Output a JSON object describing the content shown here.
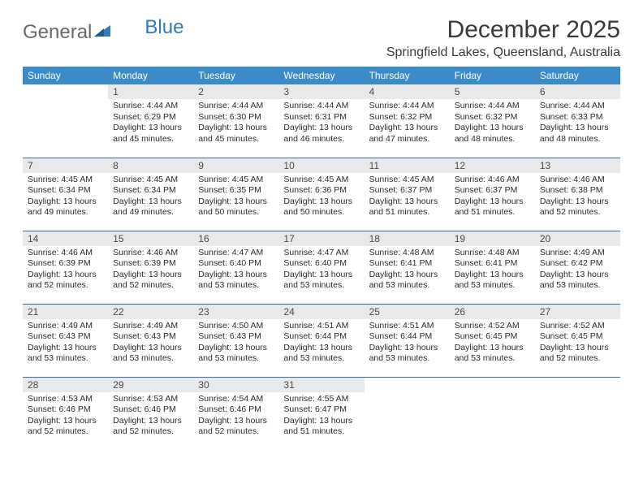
{
  "logo": {
    "text_general": "General",
    "text_blue": "Blue"
  },
  "header": {
    "month_title": "December 2025",
    "location": "Springfield Lakes, Queensland, Australia"
  },
  "colors": {
    "header_bg": "#3b8bc9",
    "header_text": "#ffffff",
    "daynum_bg": "#e8e9ea",
    "daynum_text": "#4a4a4a",
    "body_text": "#2b2b2b",
    "row_divider": "#2f6fa8",
    "title_text": "#3a3a3a",
    "logo_gray": "#6a6a6a",
    "logo_blue": "#2f7bbf"
  },
  "calendar": {
    "day_headers": [
      "Sunday",
      "Monday",
      "Tuesday",
      "Wednesday",
      "Thursday",
      "Friday",
      "Saturday"
    ],
    "first_weekday_index": 1,
    "days": [
      {
        "n": 1,
        "sunrise": "4:44 AM",
        "sunset": "6:29 PM",
        "daylight": "13 hours and 45 minutes."
      },
      {
        "n": 2,
        "sunrise": "4:44 AM",
        "sunset": "6:30 PM",
        "daylight": "13 hours and 45 minutes."
      },
      {
        "n": 3,
        "sunrise": "4:44 AM",
        "sunset": "6:31 PM",
        "daylight": "13 hours and 46 minutes."
      },
      {
        "n": 4,
        "sunrise": "4:44 AM",
        "sunset": "6:32 PM",
        "daylight": "13 hours and 47 minutes."
      },
      {
        "n": 5,
        "sunrise": "4:44 AM",
        "sunset": "6:32 PM",
        "daylight": "13 hours and 48 minutes."
      },
      {
        "n": 6,
        "sunrise": "4:44 AM",
        "sunset": "6:33 PM",
        "daylight": "13 hours and 48 minutes."
      },
      {
        "n": 7,
        "sunrise": "4:45 AM",
        "sunset": "6:34 PM",
        "daylight": "13 hours and 49 minutes."
      },
      {
        "n": 8,
        "sunrise": "4:45 AM",
        "sunset": "6:34 PM",
        "daylight": "13 hours and 49 minutes."
      },
      {
        "n": 9,
        "sunrise": "4:45 AM",
        "sunset": "6:35 PM",
        "daylight": "13 hours and 50 minutes."
      },
      {
        "n": 10,
        "sunrise": "4:45 AM",
        "sunset": "6:36 PM",
        "daylight": "13 hours and 50 minutes."
      },
      {
        "n": 11,
        "sunrise": "4:45 AM",
        "sunset": "6:37 PM",
        "daylight": "13 hours and 51 minutes."
      },
      {
        "n": 12,
        "sunrise": "4:46 AM",
        "sunset": "6:37 PM",
        "daylight": "13 hours and 51 minutes."
      },
      {
        "n": 13,
        "sunrise": "4:46 AM",
        "sunset": "6:38 PM",
        "daylight": "13 hours and 52 minutes."
      },
      {
        "n": 14,
        "sunrise": "4:46 AM",
        "sunset": "6:39 PM",
        "daylight": "13 hours and 52 minutes."
      },
      {
        "n": 15,
        "sunrise": "4:46 AM",
        "sunset": "6:39 PM",
        "daylight": "13 hours and 52 minutes."
      },
      {
        "n": 16,
        "sunrise": "4:47 AM",
        "sunset": "6:40 PM",
        "daylight": "13 hours and 53 minutes."
      },
      {
        "n": 17,
        "sunrise": "4:47 AM",
        "sunset": "6:40 PM",
        "daylight": "13 hours and 53 minutes."
      },
      {
        "n": 18,
        "sunrise": "4:48 AM",
        "sunset": "6:41 PM",
        "daylight": "13 hours and 53 minutes."
      },
      {
        "n": 19,
        "sunrise": "4:48 AM",
        "sunset": "6:41 PM",
        "daylight": "13 hours and 53 minutes."
      },
      {
        "n": 20,
        "sunrise": "4:49 AM",
        "sunset": "6:42 PM",
        "daylight": "13 hours and 53 minutes."
      },
      {
        "n": 21,
        "sunrise": "4:49 AM",
        "sunset": "6:43 PM",
        "daylight": "13 hours and 53 minutes."
      },
      {
        "n": 22,
        "sunrise": "4:49 AM",
        "sunset": "6:43 PM",
        "daylight": "13 hours and 53 minutes."
      },
      {
        "n": 23,
        "sunrise": "4:50 AM",
        "sunset": "6:43 PM",
        "daylight": "13 hours and 53 minutes."
      },
      {
        "n": 24,
        "sunrise": "4:51 AM",
        "sunset": "6:44 PM",
        "daylight": "13 hours and 53 minutes."
      },
      {
        "n": 25,
        "sunrise": "4:51 AM",
        "sunset": "6:44 PM",
        "daylight": "13 hours and 53 minutes."
      },
      {
        "n": 26,
        "sunrise": "4:52 AM",
        "sunset": "6:45 PM",
        "daylight": "13 hours and 53 minutes."
      },
      {
        "n": 27,
        "sunrise": "4:52 AM",
        "sunset": "6:45 PM",
        "daylight": "13 hours and 52 minutes."
      },
      {
        "n": 28,
        "sunrise": "4:53 AM",
        "sunset": "6:46 PM",
        "daylight": "13 hours and 52 minutes."
      },
      {
        "n": 29,
        "sunrise": "4:53 AM",
        "sunset": "6:46 PM",
        "daylight": "13 hours and 52 minutes."
      },
      {
        "n": 30,
        "sunrise": "4:54 AM",
        "sunset": "6:46 PM",
        "daylight": "13 hours and 52 minutes."
      },
      {
        "n": 31,
        "sunrise": "4:55 AM",
        "sunset": "6:47 PM",
        "daylight": "13 hours and 51 minutes."
      }
    ],
    "labels": {
      "sunrise": "Sunrise:",
      "sunset": "Sunset:",
      "daylight": "Daylight:"
    }
  },
  "typography": {
    "month_title_fontsize": 30,
    "location_fontsize": 16,
    "day_header_fontsize": 12,
    "daynum_fontsize": 12,
    "daytext_fontsize": 10.5
  }
}
